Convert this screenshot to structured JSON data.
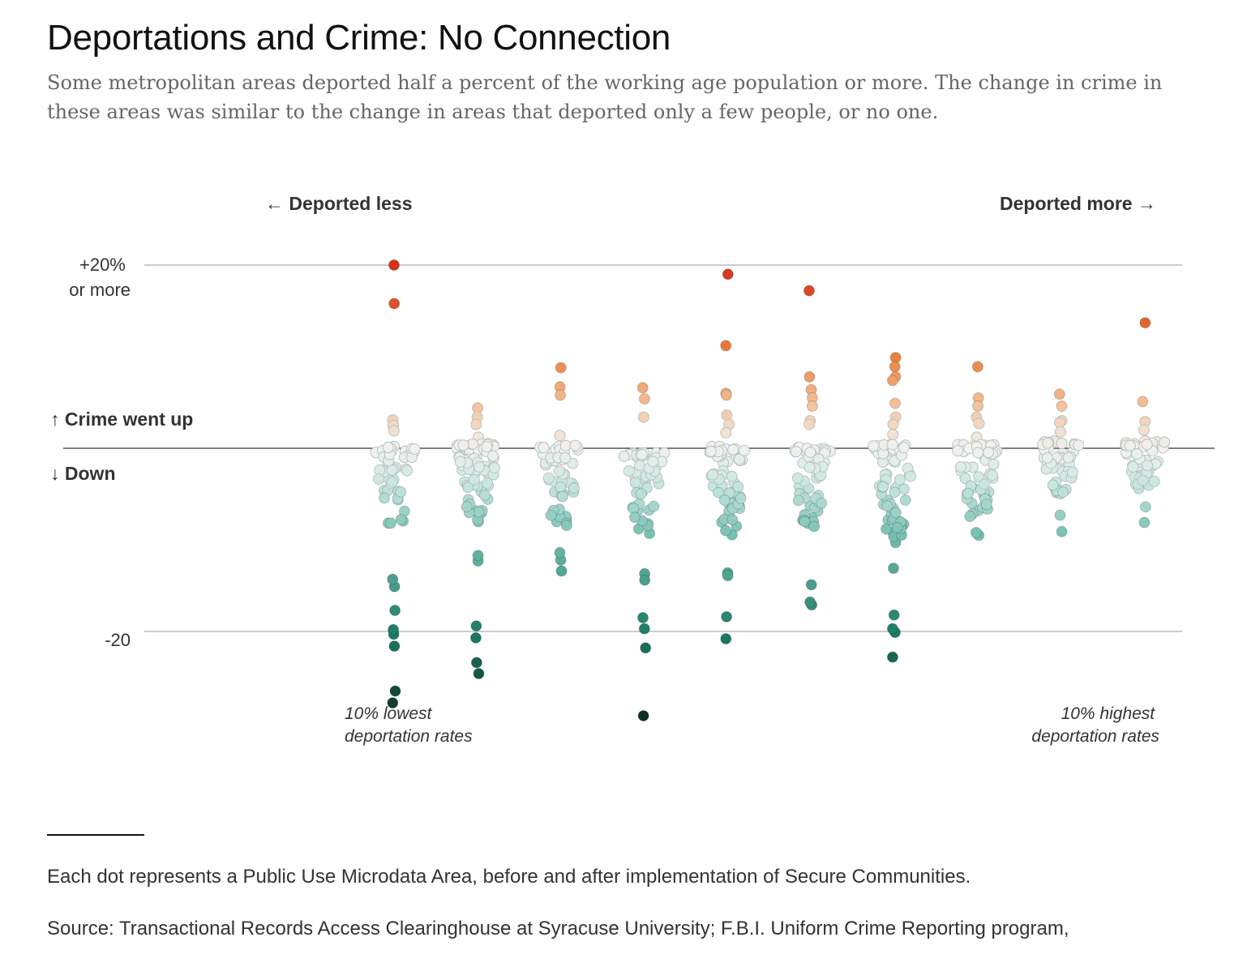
{
  "header": {
    "title": "Deportations and Crime: No Connection",
    "subtitle": "Some metropolitan areas deported half a percent of the working age population or more. The change in crime in these areas was similar to the change in areas that deported only a few people, or no one."
  },
  "footer": {
    "note": "Each dot represents a Public Use Microdata Area, before and after implementation of Secure Communities.",
    "source": "Source: Transactional Records Access Clearinghouse at Syracuse University; F.B.I. Uniform Crime Reporting program,"
  },
  "colors": {
    "up_strong": "#d7301f",
    "up_mid": "#e8823f",
    "up_light": "#f5c9a6",
    "neutral": "#f2f2f2",
    "down_light": "#c7e6df",
    "down_mid": "#6fbcad",
    "down_strong": "#1d7d66",
    "down_darkest": "#0b2b1f",
    "gridline": "#cccccc",
    "zero_line": "#333333"
  },
  "chart_data": {
    "type": "scatter",
    "ylim": [
      -30,
      20
    ],
    "y_ticks": [
      {
        "value": 20,
        "label_lines": [
          "+20%",
          "or more"
        ]
      },
      {
        "value": -20,
        "label_lines": [
          "-20"
        ]
      }
    ],
    "direction_labels": {
      "up": "↑ Crime went up",
      "down": "↓ Down",
      "left": "← Deported less",
      "right": "Deported more →"
    },
    "group_annotations": {
      "lowest": [
        "10% lowest",
        "deportation rates"
      ],
      "highest": [
        "10% highest",
        "deportation rates"
      ]
    },
    "groups": [
      {
        "decile": 1,
        "outliers": [
          20,
          15.8,
          3.1,
          2.5,
          1.9,
          0.2,
          -27.8,
          -26.5,
          -21.6,
          -20.3,
          -19.8,
          -17.7,
          -15.1,
          -14.3
        ],
        "cluster": {
          "count": 42,
          "min": -8.8,
          "max": 0.1
        }
      },
      {
        "decile": 2,
        "outliers": [
          4.4,
          3.4,
          2.6,
          1.2,
          -24.6,
          -23.4,
          -20.7,
          -19.4,
          -12.3,
          -11.7
        ],
        "cluster": {
          "count": 68,
          "min": -8.4,
          "max": 0.5
        }
      },
      {
        "decile": 3,
        "outliers": [
          8.8,
          6.7,
          5.8,
          1.4,
          -13.4,
          -12.2,
          -11.4
        ],
        "cluster": {
          "count": 48,
          "min": -8.5,
          "max": 0.3
        }
      },
      {
        "decile": 4,
        "outliers": [
          6.6,
          5.4,
          3.4,
          -29.2,
          -21.8,
          -19.7,
          -18.5,
          -13.7,
          -14.4
        ],
        "cluster": {
          "count": 52,
          "min": -9.8,
          "max": -0.5
        }
      },
      {
        "decile": 5,
        "outliers": [
          19.0,
          11.2,
          6.0,
          5.8,
          3.6,
          2.6,
          1.7,
          -20.8,
          -18.4,
          -13.6,
          -13.9
        ],
        "cluster": {
          "count": 55,
          "min": -9.7,
          "max": 0.2
        }
      },
      {
        "decile": 6,
        "outliers": [
          17.2,
          7.8,
          6.4,
          5.5,
          4.6,
          3.0,
          2.6,
          -17.1,
          -16.8,
          -14.9
        ],
        "cluster": {
          "count": 56,
          "min": -9.0,
          "max": 0.1
        }
      },
      {
        "decile": 7,
        "outliers": [
          9.9,
          8.9,
          7.8,
          7.4,
          4.9,
          3.4,
          2.6,
          1.5,
          -22.8,
          -20.1,
          -19.7,
          -18.2,
          -13.1,
          -10.3
        ],
        "cluster": {
          "count": 58,
          "min": -9.8,
          "max": 0.4
        }
      },
      {
        "decile": 8,
        "outliers": [
          8.9,
          5.5,
          4.6,
          3.4,
          2.7,
          1.2,
          -9.5,
          -9.2
        ],
        "cluster": {
          "count": 50,
          "min": -8.0,
          "max": 0.4
        }
      },
      {
        "decile": 9,
        "outliers": [
          5.9,
          4.6,
          3.0,
          2.8,
          1.8,
          -9.1,
          -7.3
        ],
        "cluster": {
          "count": 46,
          "min": -5.1,
          "max": 0.8
        }
      },
      {
        "decile": 10,
        "outliers": [
          13.7,
          5.1,
          2.9,
          2.0,
          0.8,
          -8.1,
          -6.4
        ],
        "cluster": {
          "count": 44,
          "min": -4.6,
          "max": 0.7
        }
      }
    ]
  }
}
